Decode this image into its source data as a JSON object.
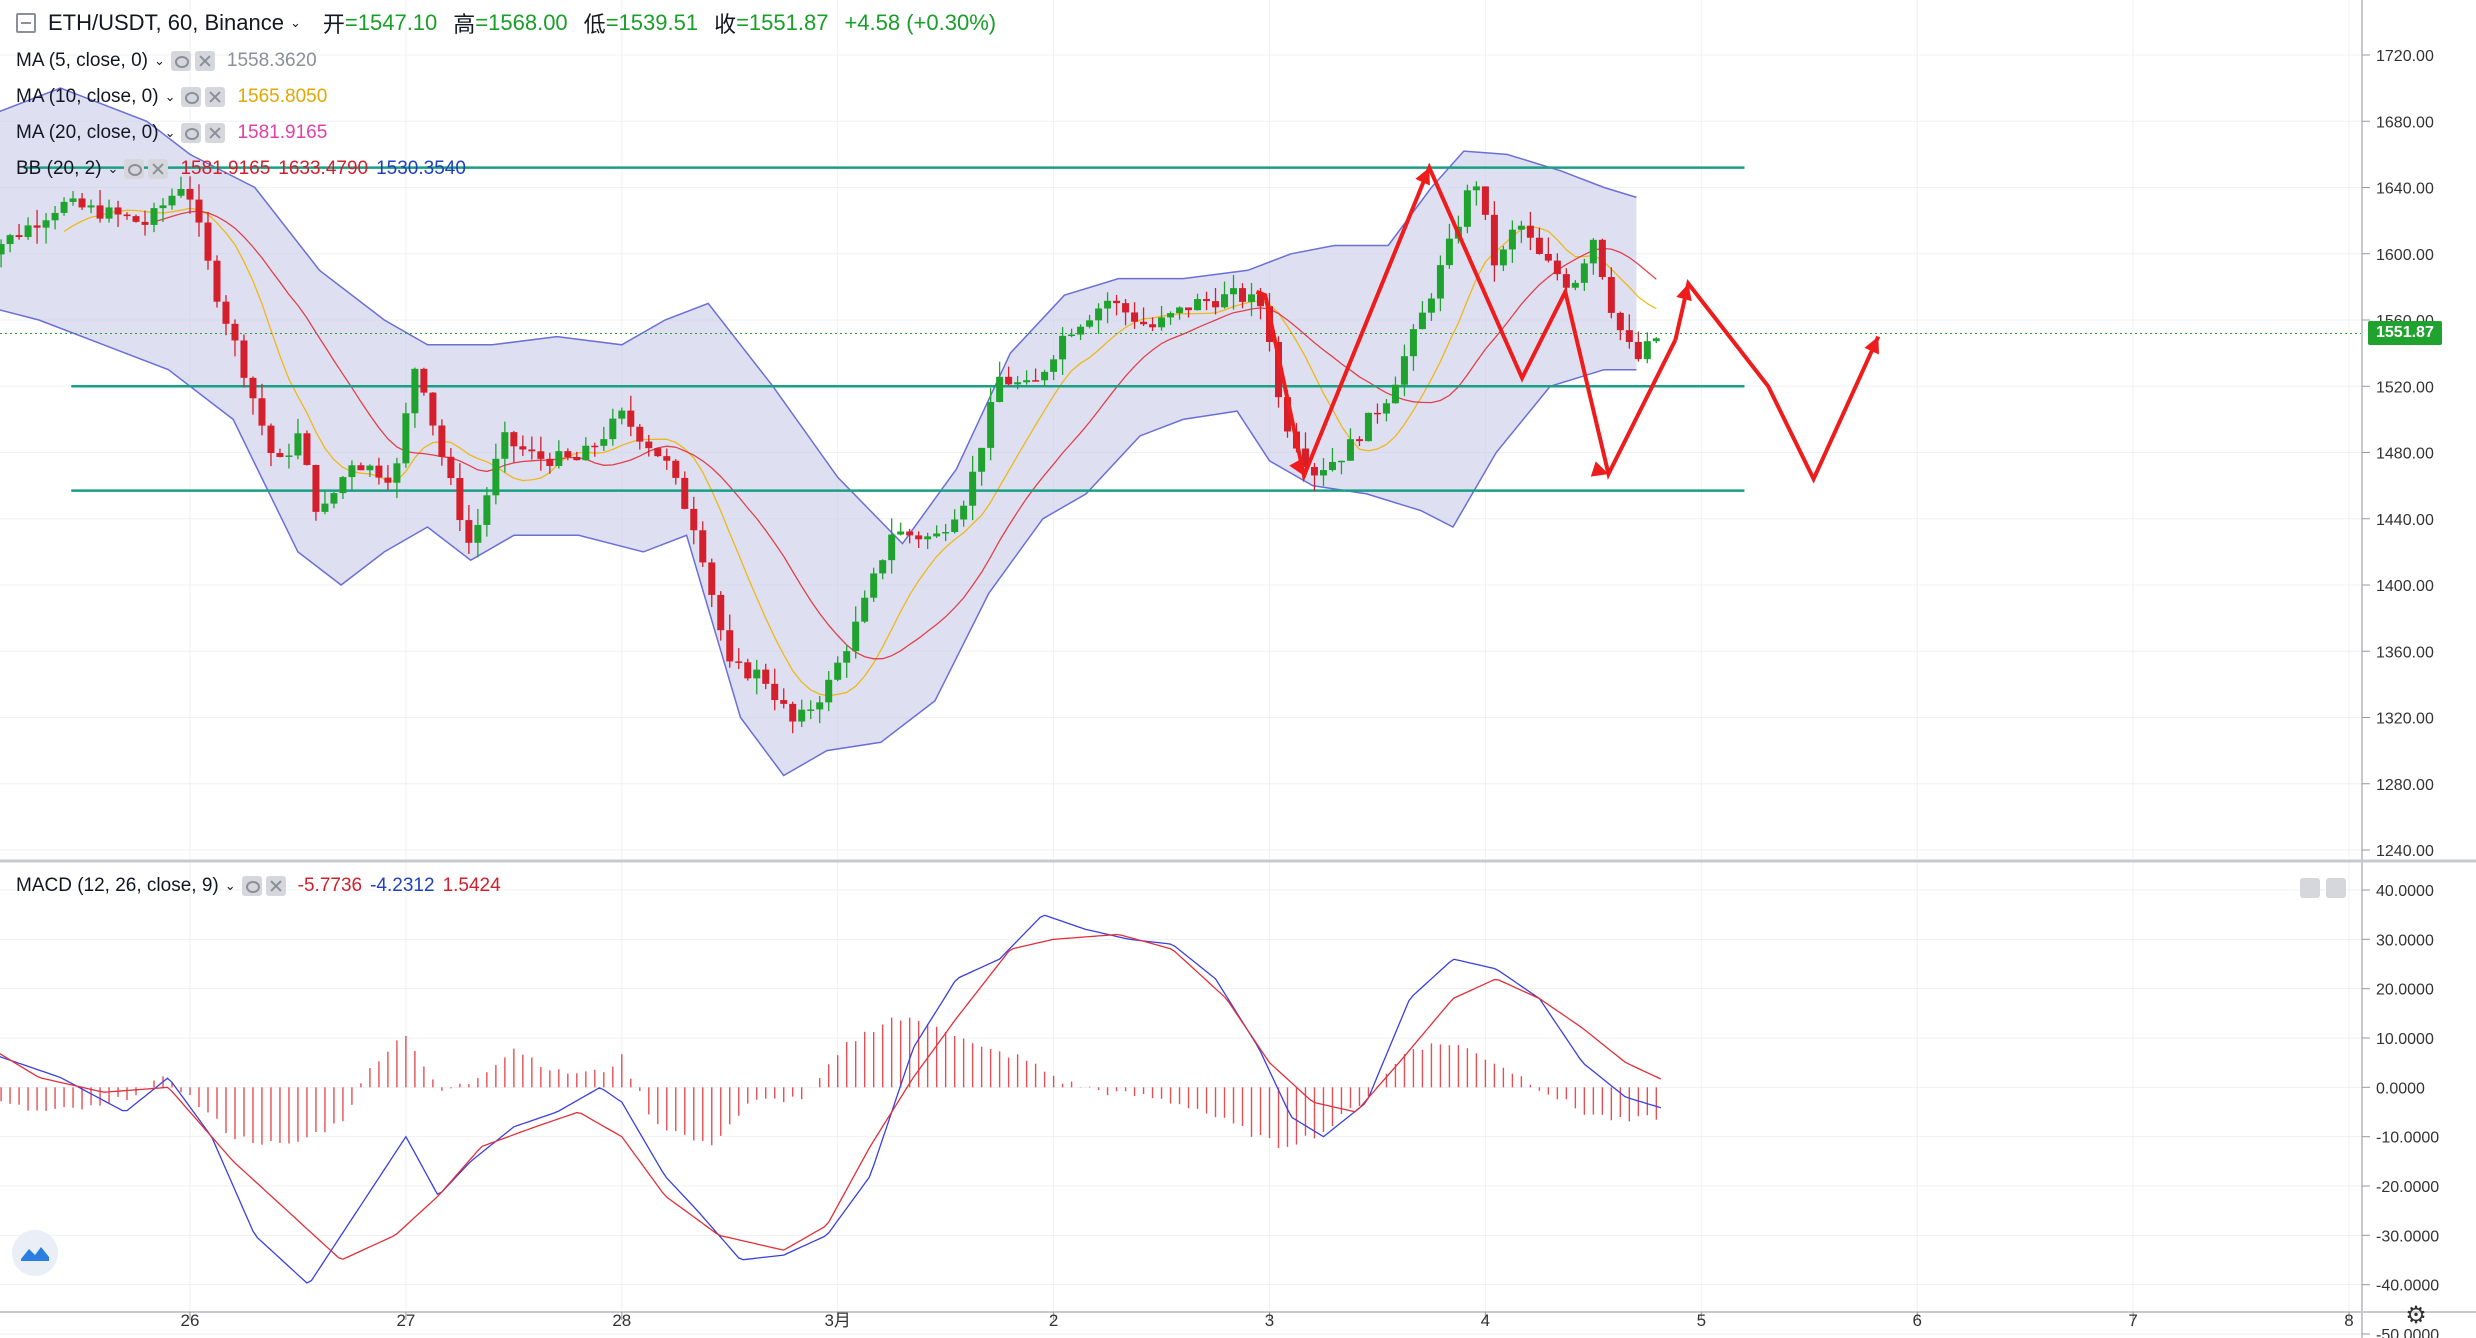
{
  "header": {
    "symbol": "ETH/USDT, 60, Binance",
    "open_label": "开",
    "open": "=1547.10",
    "high_label": "高",
    "high": "=1568.00",
    "low_label": "低",
    "low": "=1539.51",
    "close_label": "收",
    "close": "=1551.87",
    "change": "+4.58 (+0.30%)"
  },
  "indicators": {
    "ma5": {
      "name": "MA (5, close, 0)",
      "value": "1558.3620",
      "color": "#8a8f99"
    },
    "ma10": {
      "name": "MA (10, close, 0)",
      "value": "1565.8050",
      "color": "#f0b400"
    },
    "ma20": {
      "name": "MA (20, close, 0)",
      "value": "1581.9165",
      "color": "#e040a8"
    },
    "bb": {
      "name": "BB (20, 2)",
      "basis": "1581.9165",
      "upper": "1633.4790",
      "lower": "1530.3540",
      "basis_color": "#e0303a",
      "upper_color": "#d02040",
      "lower_color": "#2040c0"
    },
    "macd": {
      "name": "MACD (12, 26, close, 9)",
      "hist": "-5.7736",
      "macd": "-4.2312",
      "signal": "1.5424",
      "hist_color": "#e0303a",
      "macd_color": "#2040c0",
      "signal_color": "#e0303a"
    }
  },
  "current_price_tag": "1551.87",
  "colors": {
    "up": "#1fa32e",
    "down": "#d3202c",
    "band_fill": "#c8cbea",
    "band_line": "#6b6fd6",
    "level_line": "#1a9e84",
    "arrow": "#ee1c1c",
    "grid": "#eef0f4"
  },
  "chart_data": [
    {
      "type": "candlestick",
      "title": "ETH/USDT, 60, Binance",
      "x_tick_labels": [
        "26",
        "27",
        "28",
        "3月",
        "2",
        "3",
        "4",
        "5",
        "6",
        "7",
        "8"
      ],
      "y_tick_labels": [
        "1720.00",
        "1680.00",
        "1640.00",
        "1600.00",
        "1560.00",
        "1520.00",
        "1480.00",
        "1440.00",
        "1400.00",
        "1360.00",
        "1320.00",
        "1280.00",
        "1240.00"
      ],
      "ylim": [
        1236,
        1741
      ],
      "grid": true,
      "current_price": 1551.87,
      "horizontal_levels": [
        1652,
        1520,
        1457
      ],
      "series_waypoints": {
        "note_x_units": "days from Feb 25 00:00",
        "close_path": [
          [
            0.0,
            1598
          ],
          [
            0.2,
            1612
          ],
          [
            0.4,
            1630
          ],
          [
            0.6,
            1625
          ],
          [
            0.8,
            1618
          ],
          [
            0.98,
            1645
          ],
          [
            1.1,
            1585
          ],
          [
            1.25,
            1530
          ],
          [
            1.4,
            1470
          ],
          [
            1.5,
            1490
          ],
          [
            1.6,
            1440
          ],
          [
            1.75,
            1475
          ],
          [
            1.95,
            1465
          ],
          [
            2.05,
            1538
          ],
          [
            2.15,
            1485
          ],
          [
            2.3,
            1422
          ],
          [
            2.45,
            1488
          ],
          [
            2.6,
            1477
          ],
          [
            2.8,
            1475
          ],
          [
            3.0,
            1502
          ],
          [
            3.2,
            1475
          ],
          [
            3.35,
            1432
          ],
          [
            3.5,
            1350
          ],
          [
            3.65,
            1346
          ],
          [
            3.8,
            1315
          ],
          [
            3.95,
            1338
          ],
          [
            4.1,
            1380
          ],
          [
            4.25,
            1432
          ],
          [
            4.45,
            1428
          ],
          [
            4.6,
            1455
          ],
          [
            4.75,
            1525
          ],
          [
            4.9,
            1518
          ],
          [
            5.05,
            1552
          ],
          [
            5.25,
            1572
          ],
          [
            5.45,
            1555
          ],
          [
            5.65,
            1570
          ],
          [
            5.85,
            1575
          ],
          [
            5.98,
            1568
          ],
          [
            6.05,
            1505
          ],
          [
            6.2,
            1468
          ],
          [
            6.35,
            1480
          ],
          [
            6.55,
            1515
          ],
          [
            6.7,
            1560
          ],
          [
            6.85,
            1610
          ],
          [
            6.95,
            1648
          ],
          [
            7.05,
            1590
          ],
          [
            7.15,
            1620
          ],
          [
            7.25,
            1598
          ],
          [
            7.4,
            1580
          ],
          [
            7.5,
            1610
          ],
          [
            7.6,
            1560
          ],
          [
            7.7,
            1535
          ],
          [
            7.78,
            1548
          ],
          [
            7.82,
            1551.87
          ]
        ]
      },
      "bollinger_upper": [
        [
          0.0,
          1680
        ],
        [
          0.4,
          1700
        ],
        [
          0.8,
          1680
        ],
        [
          1.0,
          1660
        ],
        [
          1.3,
          1640
        ],
        [
          1.6,
          1590
        ],
        [
          1.9,
          1560
        ],
        [
          2.1,
          1545
        ],
        [
          2.4,
          1545
        ],
        [
          2.7,
          1550
        ],
        [
          3.0,
          1545
        ],
        [
          3.2,
          1560
        ],
        [
          3.4,
          1570
        ],
        [
          3.55,
          1545
        ],
        [
          3.7,
          1520
        ],
        [
          4.0,
          1465
        ],
        [
          4.3,
          1425
        ],
        [
          4.55,
          1470
        ],
        [
          4.8,
          1540
        ],
        [
          5.05,
          1575
        ],
        [
          5.3,
          1585
        ],
        [
          5.6,
          1585
        ],
        [
          5.9,
          1590
        ],
        [
          6.1,
          1600
        ],
        [
          6.3,
          1605
        ],
        [
          6.55,
          1605
        ],
        [
          6.75,
          1640
        ],
        [
          6.9,
          1662
        ],
        [
          7.1,
          1660
        ],
        [
          7.35,
          1650
        ],
        [
          7.55,
          1640
        ],
        [
          7.7,
          1634
        ]
      ],
      "bollinger_lower": [
        [
          0.0,
          1570
        ],
        [
          0.3,
          1560
        ],
        [
          0.6,
          1545
        ],
        [
          0.9,
          1530
        ],
        [
          1.2,
          1500
        ],
        [
          1.5,
          1420
        ],
        [
          1.7,
          1400
        ],
        [
          1.9,
          1420
        ],
        [
          2.1,
          1435
        ],
        [
          2.3,
          1415
        ],
        [
          2.5,
          1430
        ],
        [
          2.8,
          1430
        ],
        [
          3.1,
          1420
        ],
        [
          3.3,
          1430
        ],
        [
          3.55,
          1320
        ],
        [
          3.75,
          1285
        ],
        [
          3.95,
          1300
        ],
        [
          4.2,
          1305
        ],
        [
          4.45,
          1330
        ],
        [
          4.7,
          1395
        ],
        [
          4.95,
          1440
        ],
        [
          5.15,
          1455
        ],
        [
          5.4,
          1490
        ],
        [
          5.6,
          1500
        ],
        [
          5.85,
          1505
        ],
        [
          6.0,
          1475
        ],
        [
          6.2,
          1460
        ],
        [
          6.45,
          1455
        ],
        [
          6.7,
          1445
        ],
        [
          6.85,
          1435
        ],
        [
          7.05,
          1480
        ],
        [
          7.3,
          1520
        ],
        [
          7.55,
          1530
        ],
        [
          7.7,
          1530
        ]
      ],
      "projection_arrow": [
        [
          5.94,
          1577
        ],
        [
          5.98,
          1575
        ],
        [
          6.16,
          1466
        ],
        [
          6.74,
          1652
        ],
        [
          7.17,
          1525
        ],
        [
          7.37,
          1577
        ],
        [
          7.57,
          1467
        ],
        [
          7.88,
          1548
        ]
      ]
    },
    {
      "type": "line",
      "title": "MACD (12, 26, close, 9)",
      "y_tick_labels": [
        "40.0000",
        "30.0000",
        "20.0000",
        "10.0000",
        "0.0000",
        "-10.0000",
        "-20.0000",
        "-30.0000",
        "-40.0000",
        "-50.0000"
      ],
      "ylim": [
        -50,
        41
      ],
      "series": [
        {
          "name": "MACD",
          "values_waypoints": [
            [
              0.0,
              8
            ],
            [
              0.4,
              2
            ],
            [
              0.7,
              -5
            ],
            [
              0.9,
              2
            ],
            [
              1.1,
              -10
            ],
            [
              1.3,
              -30
            ],
            [
              1.55,
              -40
            ],
            [
              1.7,
              -30
            ],
            [
              1.85,
              -20
            ],
            [
              2.0,
              -10
            ],
            [
              2.15,
              -22
            ],
            [
              2.3,
              -15
            ],
            [
              2.5,
              -8
            ],
            [
              2.7,
              -5
            ],
            [
              2.9,
              0
            ],
            [
              3.0,
              -3
            ],
            [
              3.2,
              -18
            ],
            [
              3.35,
              -25
            ],
            [
              3.55,
              -35
            ],
            [
              3.75,
              -34
            ],
            [
              3.95,
              -30
            ],
            [
              4.15,
              -18
            ],
            [
              4.35,
              8
            ],
            [
              4.55,
              22
            ],
            [
              4.75,
              26
            ],
            [
              4.95,
              35
            ],
            [
              5.15,
              32
            ],
            [
              5.35,
              30
            ],
            [
              5.55,
              29
            ],
            [
              5.75,
              22
            ],
            [
              5.95,
              8
            ],
            [
              6.1,
              -6
            ],
            [
              6.25,
              -10
            ],
            [
              6.45,
              -3
            ],
            [
              6.65,
              18
            ],
            [
              6.85,
              26
            ],
            [
              7.05,
              24
            ],
            [
              7.25,
              18
            ],
            [
              7.45,
              5
            ],
            [
              7.65,
              -2
            ],
            [
              7.82,
              -4.2312
            ]
          ]
        },
        {
          "name": "Signal",
          "values_waypoints": [
            [
              0.0,
              10
            ],
            [
              0.3,
              2
            ],
            [
              0.6,
              -1
            ],
            [
              0.9,
              0
            ],
            [
              1.2,
              -15
            ],
            [
              1.45,
              -25
            ],
            [
              1.7,
              -35
            ],
            [
              1.95,
              -30
            ],
            [
              2.15,
              -22
            ],
            [
              2.35,
              -12
            ],
            [
              2.6,
              -8
            ],
            [
              2.8,
              -5
            ],
            [
              3.0,
              -10
            ],
            [
              3.2,
              -22
            ],
            [
              3.45,
              -30
            ],
            [
              3.75,
              -33
            ],
            [
              3.95,
              -28
            ],
            [
              4.15,
              -12
            ],
            [
              4.35,
              2
            ],
            [
              4.55,
              14
            ],
            [
              4.8,
              28
            ],
            [
              5.0,
              30
            ],
            [
              5.3,
              31
            ],
            [
              5.55,
              28
            ],
            [
              5.8,
              18
            ],
            [
              6.0,
              5
            ],
            [
              6.2,
              -3
            ],
            [
              6.4,
              -5
            ],
            [
              6.6,
              5
            ],
            [
              6.85,
              18
            ],
            [
              7.05,
              22
            ],
            [
              7.25,
              18
            ],
            [
              7.45,
              12
            ],
            [
              7.65,
              5
            ],
            [
              7.82,
              1.5424
            ]
          ]
        }
      ],
      "histogram_waypoints": [
        [
          0.0,
          -2
        ],
        [
          0.3,
          -5
        ],
        [
          0.6,
          -4
        ],
        [
          0.9,
          2
        ],
        [
          1.2,
          -10
        ],
        [
          1.45,
          -12
        ],
        [
          1.7,
          -7
        ],
        [
          1.85,
          5
        ],
        [
          2.0,
          11
        ],
        [
          2.15,
          -1
        ],
        [
          2.3,
          1
        ],
        [
          2.5,
          8
        ],
        [
          2.7,
          3
        ],
        [
          2.9,
          3
        ],
        [
          3.0,
          6
        ],
        [
          3.15,
          -7
        ],
        [
          3.4,
          -12
        ],
        [
          3.6,
          -3
        ],
        [
          3.85,
          -2
        ],
        [
          4.05,
          9
        ],
        [
          4.25,
          14
        ],
        [
          4.45,
          13
        ],
        [
          4.65,
          8
        ],
        [
          4.85,
          6
        ],
        [
          5.05,
          1
        ],
        [
          5.25,
          -1
        ],
        [
          5.45,
          -2
        ],
        [
          5.65,
          -4
        ],
        [
          5.85,
          -8
        ],
        [
          6.05,
          -12
        ],
        [
          6.25,
          -9
        ],
        [
          6.45,
          -2
        ],
        [
          6.65,
          8
        ],
        [
          6.85,
          9
        ],
        [
          7.05,
          5
        ],
        [
          7.25,
          0
        ],
        [
          7.45,
          -5
        ],
        [
          7.65,
          -7
        ],
        [
          7.82,
          -5.7736
        ]
      ]
    }
  ]
}
